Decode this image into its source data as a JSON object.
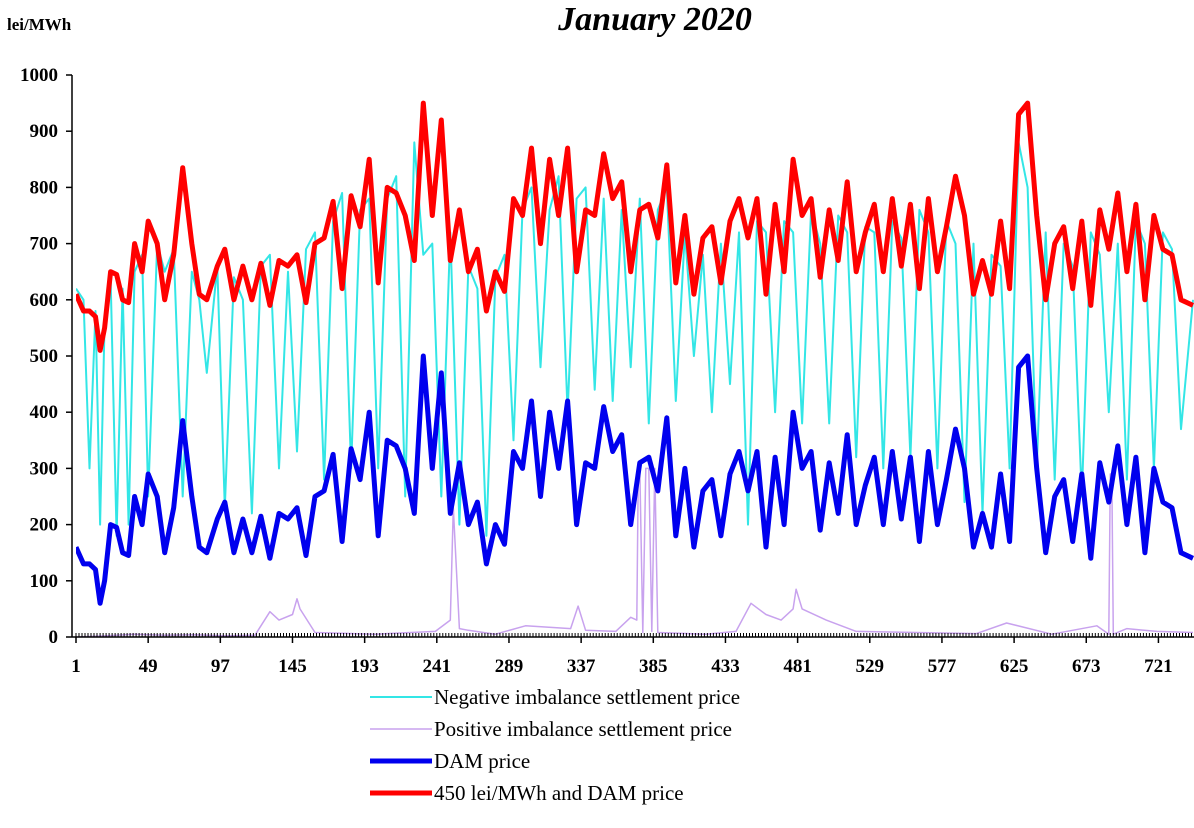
{
  "chart_data": {
    "type": "line",
    "title": "January 2020",
    "ylabel": "lei/MWh",
    "xlabel": "",
    "ylim": [
      0,
      1000
    ],
    "xlim": [
      1,
      744
    ],
    "yticks": [
      0,
      100,
      200,
      300,
      400,
      500,
      600,
      700,
      800,
      900,
      1000
    ],
    "xticks": [
      1,
      49,
      97,
      145,
      193,
      241,
      289,
      337,
      385,
      433,
      481,
      529,
      577,
      625,
      673,
      721
    ],
    "grid": false,
    "legend_position": "bottom",
    "series": [
      {
        "name": "Negative imbalance settlement price",
        "color": "#33e6e6",
        "width": 2,
        "x": [
          1,
          6,
          10,
          14,
          17,
          20,
          24,
          28,
          32,
          36,
          40,
          45,
          49,
          55,
          60,
          66,
          72,
          78,
          83,
          88,
          95,
          100,
          106,
          112,
          118,
          124,
          130,
          136,
          142,
          148,
          154,
          160,
          166,
          172,
          178,
          184,
          190,
          196,
          202,
          208,
          214,
          220,
          226,
          232,
          238,
          244,
          250,
          256,
          262,
          268,
          274,
          280,
          286,
          292,
          298,
          304,
          310,
          316,
          322,
          328,
          334,
          340,
          346,
          352,
          358,
          364,
          370,
          376,
          382,
          388,
          394,
          400,
          406,
          412,
          418,
          424,
          430,
          436,
          442,
          448,
          454,
          460,
          466,
          472,
          478,
          484,
          490,
          496,
          502,
          508,
          514,
          520,
          526,
          532,
          538,
          544,
          550,
          556,
          562,
          568,
          574,
          580,
          586,
          592,
          598,
          604,
          610,
          616,
          622,
          628,
          634,
          640,
          646,
          652,
          658,
          664,
          670,
          676,
          682,
          688,
          694,
          700,
          706,
          712,
          718,
          724,
          730,
          736,
          744
        ],
        "values": [
          620,
          600,
          300,
          580,
          200,
          560,
          640,
          180,
          620,
          200,
          650,
          680,
          250,
          700,
          650,
          690,
          250,
          650,
          600,
          470,
          660,
          230,
          640,
          600,
          220,
          660,
          680,
          300,
          650,
          330,
          690,
          720,
          280,
          740,
          790,
          300,
          760,
          780,
          300,
          780,
          820,
          250,
          880,
          680,
          700,
          250,
          720,
          200,
          660,
          620,
          180,
          640,
          680,
          350,
          760,
          800,
          480,
          760,
          820,
          400,
          780,
          800,
          440,
          780,
          420,
          760,
          480,
          780,
          380,
          760,
          800,
          420,
          720,
          500,
          680,
          400,
          700,
          450,
          720,
          200,
          740,
          720,
          400,
          740,
          720,
          380,
          760,
          700,
          380,
          750,
          720,
          320,
          730,
          720,
          300,
          740,
          710,
          320,
          760,
          720,
          300,
          740,
          700,
          240,
          700,
          220,
          680,
          660,
          300,
          880,
          800,
          300,
          720,
          280,
          700,
          660,
          250,
          720,
          680,
          400,
          700,
          280,
          740,
          700,
          300,
          720,
          690,
          370,
          600
        ]
      },
      {
        "name": "Positive imbalance settlement price",
        "color": "#c8a2ee",
        "width": 1.5,
        "x": [
          1,
          20,
          40,
          60,
          80,
          100,
          120,
          130,
          136,
          145,
          148,
          150,
          160,
          200,
          240,
          250,
          252,
          256,
          262,
          280,
          300,
          330,
          335,
          340,
          360,
          370,
          374,
          375,
          376,
          378,
          380,
          382,
          384,
          386,
          388,
          420,
          440,
          450,
          460,
          470,
          478,
          480,
          484,
          500,
          520,
          560,
          600,
          620,
          650,
          680,
          688,
          689,
          690,
          691,
          700,
          720,
          744
        ],
        "values": [
          0,
          2,
          5,
          3,
          4,
          2,
          3,
          45,
          30,
          40,
          68,
          50,
          8,
          5,
          10,
          30,
          230,
          15,
          12,
          5,
          20,
          15,
          55,
          12,
          10,
          35,
          30,
          300,
          300,
          8,
          300,
          300,
          10,
          300,
          8,
          5,
          10,
          60,
          40,
          30,
          50,
          85,
          50,
          30,
          10,
          8,
          6,
          25,
          5,
          20,
          5,
          290,
          290,
          5,
          15,
          10,
          8
        ]
      },
      {
        "name": "DAM price",
        "color": "#0000ee",
        "width": 5,
        "x": [
          1,
          6,
          10,
          14,
          17,
          20,
          24,
          28,
          32,
          36,
          40,
          45,
          49,
          55,
          60,
          66,
          72,
          78,
          83,
          88,
          95,
          100,
          106,
          112,
          118,
          124,
          130,
          136,
          142,
          148,
          154,
          160,
          166,
          172,
          178,
          184,
          190,
          196,
          202,
          208,
          214,
          220,
          226,
          232,
          238,
          244,
          250,
          256,
          262,
          268,
          274,
          280,
          286,
          292,
          298,
          304,
          310,
          316,
          322,
          328,
          334,
          340,
          346,
          352,
          358,
          364,
          370,
          376,
          382,
          388,
          394,
          400,
          406,
          412,
          418,
          424,
          430,
          436,
          442,
          448,
          454,
          460,
          466,
          472,
          478,
          484,
          490,
          496,
          502,
          508,
          514,
          520,
          526,
          532,
          538,
          544,
          550,
          556,
          562,
          568,
          574,
          580,
          586,
          592,
          598,
          604,
          610,
          616,
          622,
          628,
          634,
          640,
          646,
          652,
          658,
          664,
          670,
          676,
          682,
          688,
          694,
          700,
          706,
          712,
          718,
          724,
          730,
          736,
          744
        ],
        "values": [
          160,
          130,
          130,
          120,
          60,
          100,
          200,
          195,
          150,
          145,
          250,
          200,
          290,
          250,
          150,
          230,
          385,
          250,
          160,
          150,
          210,
          240,
          150,
          210,
          150,
          215,
          140,
          220,
          210,
          230,
          145,
          250,
          260,
          325,
          170,
          335,
          280,
          400,
          180,
          350,
          340,
          300,
          220,
          500,
          300,
          470,
          220,
          310,
          200,
          240,
          130,
          200,
          165,
          330,
          300,
          420,
          250,
          400,
          300,
          420,
          200,
          310,
          300,
          410,
          330,
          360,
          200,
          310,
          320,
          260,
          390,
          180,
          300,
          160,
          260,
          280,
          180,
          290,
          330,
          260,
          330,
          160,
          320,
          200,
          400,
          300,
          330,
          190,
          310,
          220,
          360,
          200,
          270,
          320,
          200,
          330,
          210,
          320,
          170,
          330,
          200,
          280,
          370,
          300,
          160,
          220,
          160,
          290,
          170,
          480,
          500,
          300,
          150,
          250,
          280,
          170,
          290,
          140,
          310,
          240,
          340,
          200,
          320,
          150,
          300,
          240,
          230,
          150,
          140
        ]
      },
      {
        "name": "450 lei/MWh and DAM price",
        "color": "#ff0000",
        "width": 5,
        "x": [
          1,
          6,
          10,
          14,
          17,
          20,
          24,
          28,
          32,
          36,
          40,
          45,
          49,
          55,
          60,
          66,
          72,
          78,
          83,
          88,
          95,
          100,
          106,
          112,
          118,
          124,
          130,
          136,
          142,
          148,
          154,
          160,
          166,
          172,
          178,
          184,
          190,
          196,
          202,
          208,
          214,
          220,
          226,
          232,
          238,
          244,
          250,
          256,
          262,
          268,
          274,
          280,
          286,
          292,
          298,
          304,
          310,
          316,
          322,
          328,
          334,
          340,
          346,
          352,
          358,
          364,
          370,
          376,
          382,
          388,
          394,
          400,
          406,
          412,
          418,
          424,
          430,
          436,
          442,
          448,
          454,
          460,
          466,
          472,
          478,
          484,
          490,
          496,
          502,
          508,
          514,
          520,
          526,
          532,
          538,
          544,
          550,
          556,
          562,
          568,
          574,
          580,
          586,
          592,
          598,
          604,
          610,
          616,
          622,
          628,
          634,
          640,
          646,
          652,
          658,
          664,
          670,
          676,
          682,
          688,
          694,
          700,
          706,
          712,
          718,
          724,
          730,
          736,
          744
        ],
        "values": [
          610,
          580,
          580,
          570,
          510,
          550,
          650,
          645,
          600,
          595,
          700,
          650,
          740,
          700,
          600,
          680,
          835,
          700,
          610,
          600,
          660,
          690,
          600,
          660,
          600,
          665,
          590,
          670,
          660,
          680,
          595,
          700,
          710,
          775,
          620,
          785,
          730,
          850,
          630,
          800,
          790,
          750,
          670,
          950,
          750,
          920,
          670,
          760,
          650,
          690,
          580,
          650,
          615,
          780,
          750,
          870,
          700,
          850,
          750,
          870,
          650,
          760,
          750,
          860,
          780,
          810,
          650,
          760,
          770,
          710,
          840,
          630,
          750,
          610,
          710,
          730,
          630,
          740,
          780,
          710,
          780,
          610,
          770,
          650,
          850,
          750,
          780,
          640,
          760,
          670,
          810,
          650,
          720,
          770,
          650,
          780,
          660,
          770,
          620,
          780,
          650,
          730,
          820,
          750,
          610,
          670,
          610,
          740,
          620,
          930,
          950,
          750,
          600,
          700,
          730,
          620,
          740,
          590,
          760,
          690,
          790,
          650,
          770,
          600,
          750,
          690,
          680,
          600,
          590
        ]
      }
    ]
  }
}
